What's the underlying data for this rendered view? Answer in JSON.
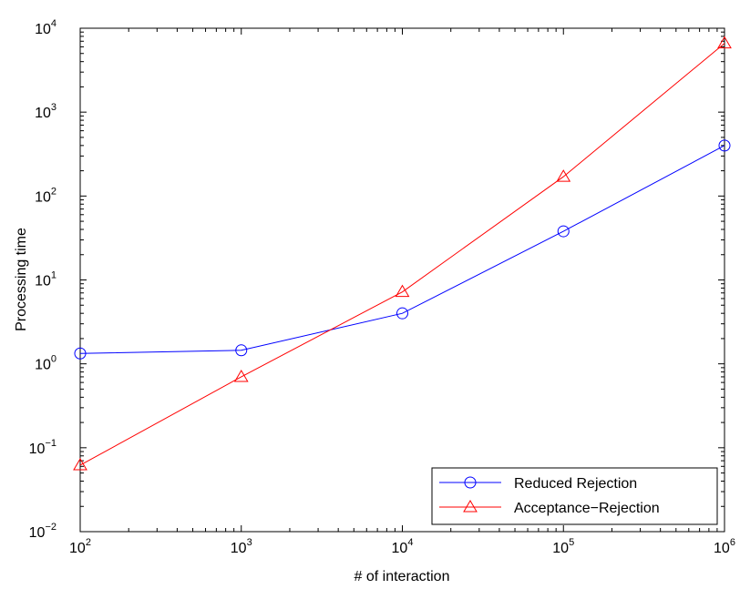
{
  "chart_data": {
    "type": "line",
    "xlabel": "# of interaction",
    "ylabel": "Processing time",
    "xscale": "log",
    "yscale": "log",
    "xlim": [
      100,
      1000000
    ],
    "ylim": [
      0.01,
      10000
    ],
    "x_ticks": [
      {
        "base": "10",
        "exp": "2",
        "value": 100
      },
      {
        "base": "10",
        "exp": "3",
        "value": 1000
      },
      {
        "base": "10",
        "exp": "4",
        "value": 10000
      },
      {
        "base": "10",
        "exp": "5",
        "value": 100000
      },
      {
        "base": "10",
        "exp": "6",
        "value": 1000000
      }
    ],
    "y_ticks": [
      {
        "base": "10",
        "exp": "−2",
        "value": 0.01
      },
      {
        "base": "10",
        "exp": "−1",
        "value": 0.1
      },
      {
        "base": "10",
        "exp": "0",
        "value": 1
      },
      {
        "base": "10",
        "exp": "1",
        "value": 10
      },
      {
        "base": "10",
        "exp": "2",
        "value": 100
      },
      {
        "base": "10",
        "exp": "3",
        "value": 1000
      },
      {
        "base": "10",
        "exp": "4",
        "value": 10000
      }
    ],
    "grid": false,
    "legend_position": "bottom-right",
    "series": [
      {
        "name": "Reduced Rejection",
        "color": "#0000ff",
        "marker": "circle",
        "x": [
          100,
          1000,
          10000,
          100000,
          1000000
        ],
        "y": [
          1.33,
          1.45,
          4.0,
          38,
          400
        ]
      },
      {
        "name": "Acceptance−Rejection",
        "color": "#ff0000",
        "marker": "triangle",
        "x": [
          100,
          1000,
          10000,
          100000,
          1000000
        ],
        "y": [
          0.062,
          0.7,
          7.2,
          170,
          6600
        ]
      }
    ]
  }
}
